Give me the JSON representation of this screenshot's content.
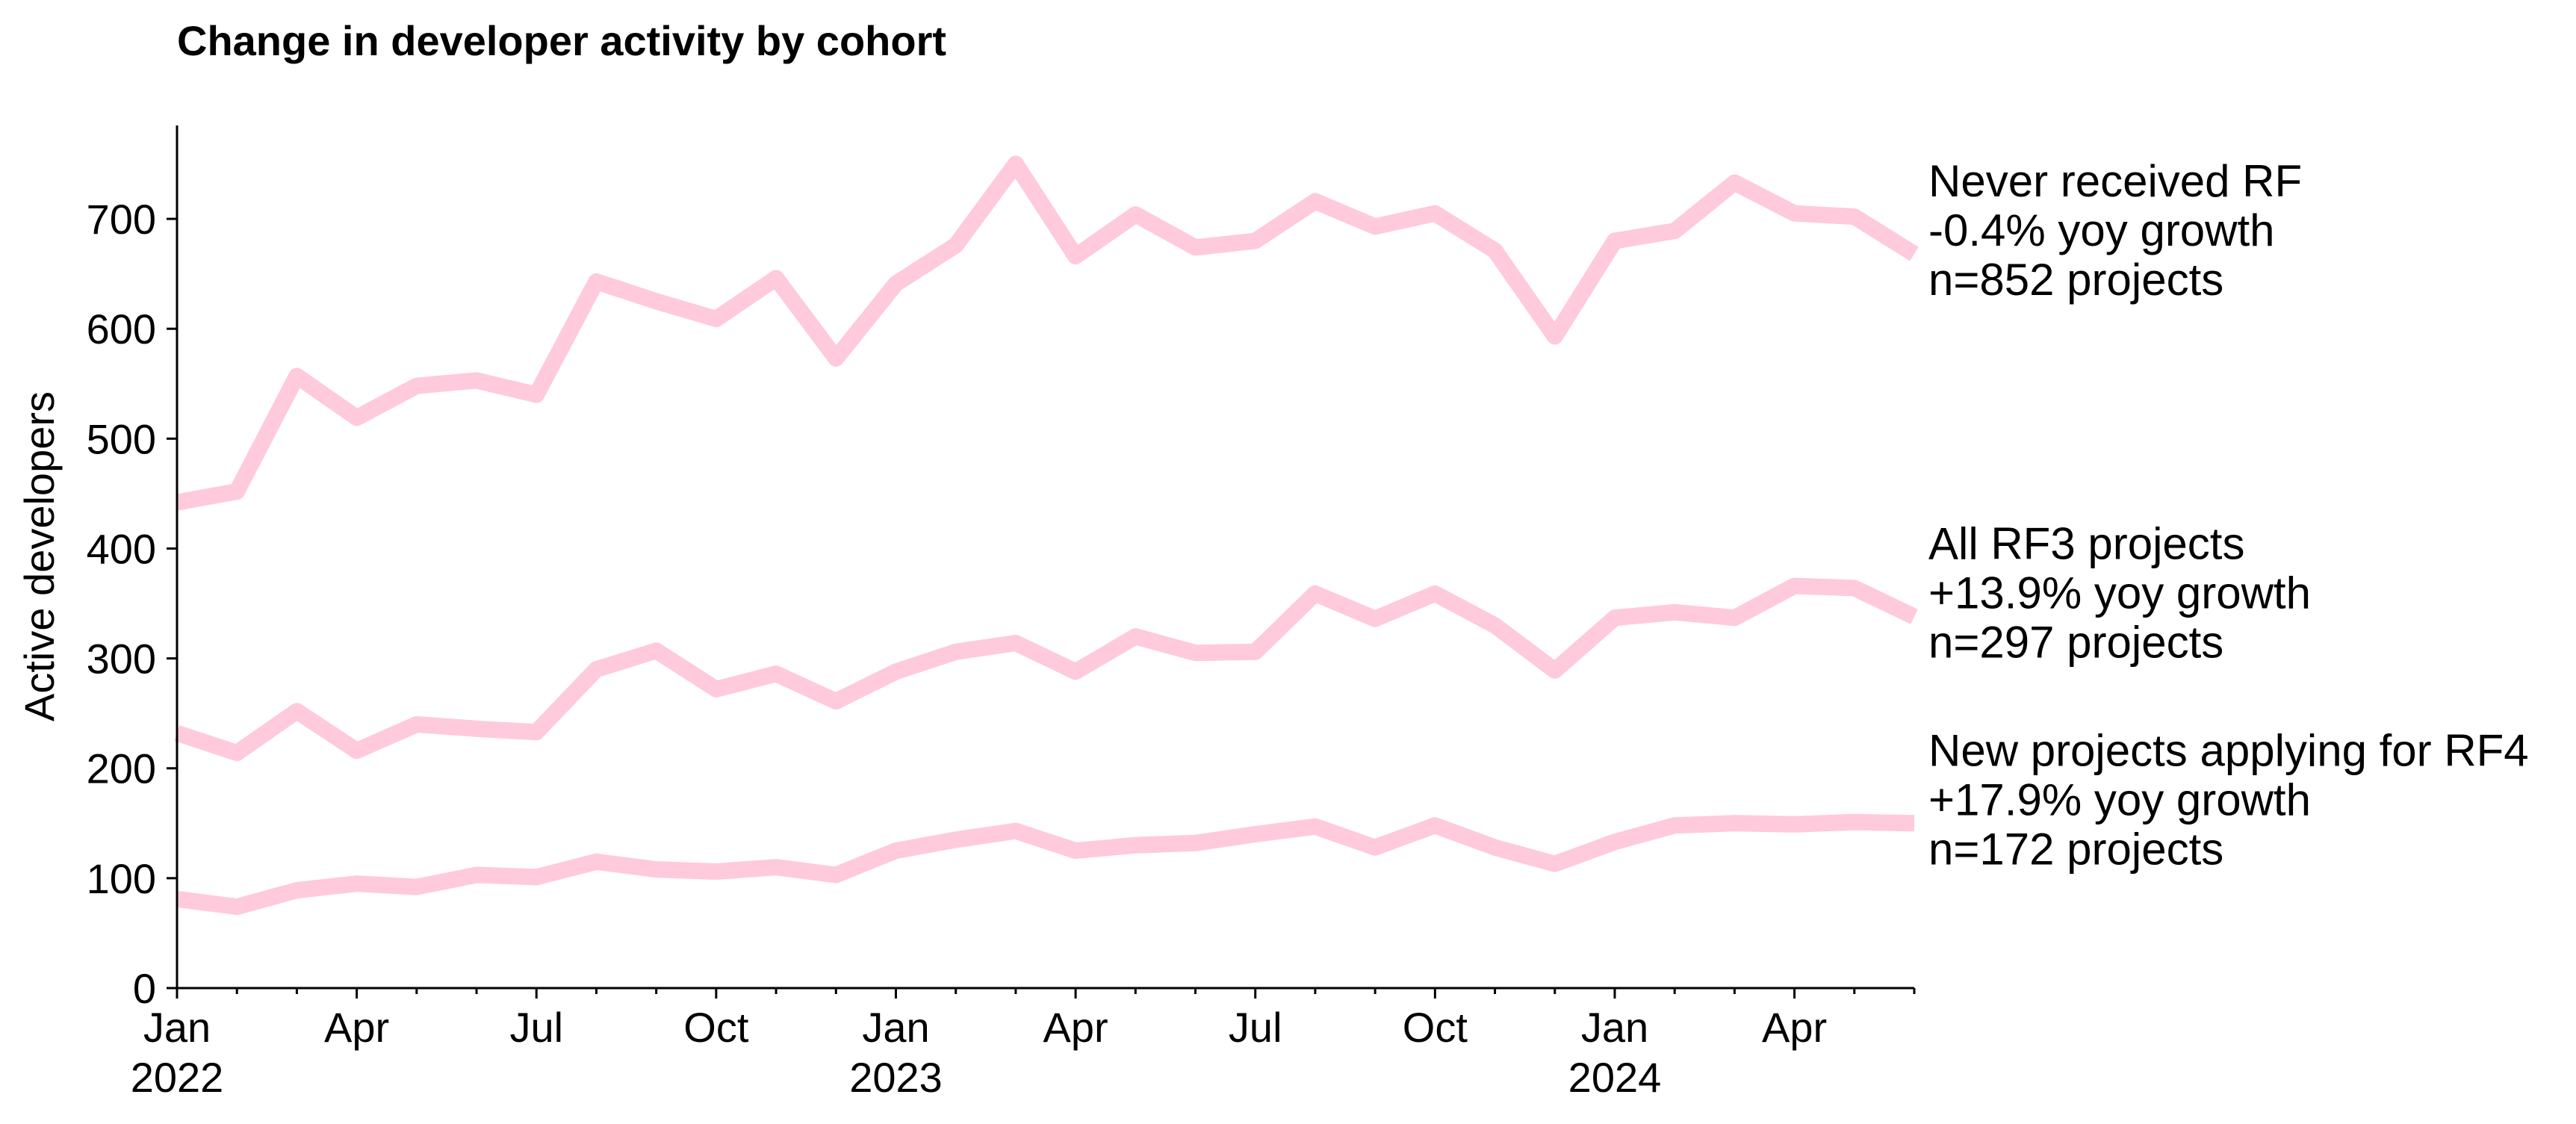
{
  "chart_data": {
    "type": "line",
    "title": "Change in developer activity by cohort",
    "xlabel": "",
    "ylabel": "Active developers",
    "ylim": [
      0,
      785
    ],
    "yticks": [
      0,
      100,
      200,
      300,
      400,
      500,
      600,
      700
    ],
    "x_range": [
      "2022-01",
      "2024-06"
    ],
    "x": [
      "2022-01",
      "2022-02",
      "2022-03",
      "2022-04",
      "2022-05",
      "2022-06",
      "2022-07",
      "2022-08",
      "2022-09",
      "2022-10",
      "2022-11",
      "2022-12",
      "2023-01",
      "2023-02",
      "2023-03",
      "2023-04",
      "2023-05",
      "2023-06",
      "2023-07",
      "2023-08",
      "2023-09",
      "2023-10",
      "2023-11",
      "2023-12",
      "2024-01",
      "2024-02",
      "2024-03",
      "2024-04",
      "2024-05",
      "2024-06"
    ],
    "xtick_labels": [
      {
        "x": "2022-01",
        "label": "Jan",
        "year": "2022"
      },
      {
        "x": "2022-04",
        "label": "Apr",
        "year": ""
      },
      {
        "x": "2022-07",
        "label": "Jul",
        "year": ""
      },
      {
        "x": "2022-10",
        "label": "Oct",
        "year": ""
      },
      {
        "x": "2023-01",
        "label": "Jan",
        "year": "2023"
      },
      {
        "x": "2023-04",
        "label": "Apr",
        "year": ""
      },
      {
        "x": "2023-07",
        "label": "Jul",
        "year": ""
      },
      {
        "x": "2023-10",
        "label": "Oct",
        "year": ""
      },
      {
        "x": "2024-01",
        "label": "Jan",
        "year": "2024"
      },
      {
        "x": "2024-04",
        "label": "Apr",
        "year": ""
      }
    ],
    "grid": false,
    "legend": "none",
    "line_color": "#ffcadb",
    "series": [
      {
        "values": [
          442,
          452,
          557,
          519,
          548,
          553,
          540,
          643,
          625,
          609,
          646,
          573,
          641,
          676,
          750,
          666,
          704,
          674,
          680,
          716,
          693,
          705,
          671,
          593,
          680,
          689,
          733,
          705,
          702,
          668
        ],
        "label_lines": [
          "Never received RF",
          "-0.4% yoy growth",
          "n=852 projects"
        ]
      },
      {
        "values": [
          232,
          214,
          252,
          216,
          240,
          236,
          233,
          290,
          307,
          272,
          286,
          261,
          288,
          306,
          314,
          288,
          320,
          305,
          306,
          359,
          336,
          359,
          330,
          289,
          337,
          342,
          337,
          366,
          364,
          338
        ],
        "label_lines": [
          "All RF3 projects",
          "+13.9% yoy growth",
          "n=297 projects"
        ]
      },
      {
        "values": [
          81,
          74,
          89,
          95,
          92,
          103,
          101,
          115,
          108,
          106,
          110,
          103,
          125,
          135,
          143,
          125,
          130,
          132,
          140,
          147,
          128,
          148,
          128,
          113,
          133,
          148,
          150,
          149,
          151,
          150
        ],
        "label_lines": [
          "New projects applying for RF4",
          "+17.9% yoy growth",
          "n=172 projects"
        ]
      }
    ]
  }
}
